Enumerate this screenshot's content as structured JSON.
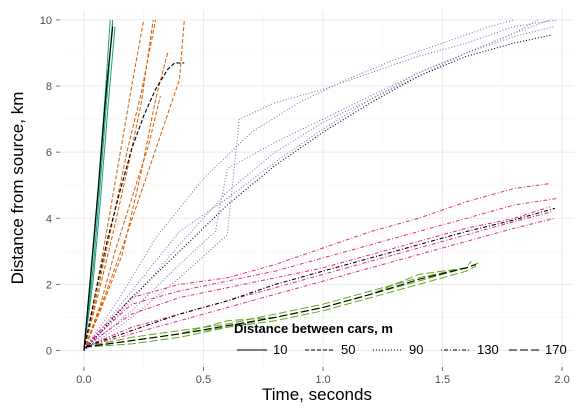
{
  "chart_data": {
    "type": "line",
    "xlabel": "Time, seconds",
    "ylabel": "Distance from source, km",
    "xlim": [
      -0.1,
      2.05
    ],
    "ylim": [
      -0.5,
      10.3
    ],
    "x_ticks": [
      "0.0",
      "0.5",
      "1.0",
      "1.5",
      "2.0"
    ],
    "y_ticks": [
      "0",
      "2",
      "4",
      "6",
      "8",
      "10"
    ],
    "grid": true,
    "background": "#ffffff",
    "grid_major_color": "#ebebeb",
    "grid_minor_color": "#f5f5f5",
    "legend": {
      "title": "Distance between cars, m",
      "position": "bottom-right",
      "entries": [
        {
          "label": "10",
          "dash": "solid"
        },
        {
          "label": "50",
          "dash": "dashed"
        },
        {
          "label": "90",
          "dash": "dotted"
        },
        {
          "label": "130",
          "dash": "dotdash"
        },
        {
          "label": "170",
          "dash": "longdash"
        }
      ]
    },
    "groups": [
      {
        "spacing_m": 10,
        "color": "#1b9e77",
        "runs": [
          {
            "x": [
              0,
              0.03,
              0.06,
              0.09,
              0.11
            ],
            "y": [
              0,
              2.5,
              5.0,
              7.8,
              10.0
            ]
          },
          {
            "x": [
              0,
              0.03,
              0.06,
              0.09,
              0.12
            ],
            "y": [
              0,
              2.3,
              4.8,
              7.5,
              9.9
            ]
          },
          {
            "x": [
              0,
              0.04,
              0.07,
              0.1,
              0.12
            ],
            "y": [
              0,
              2.6,
              5.2,
              8.0,
              10.0
            ]
          },
          {
            "x": [
              0,
              0.03,
              0.06,
              0.09,
              0.12
            ],
            "y": [
              0,
              2.4,
              4.9,
              7.6,
              9.7
            ]
          },
          {
            "x": [
              0,
              0.04,
              0.07,
              0.1,
              0.13
            ],
            "y": [
              0,
              2.2,
              4.6,
              7.3,
              9.8
            ]
          }
        ],
        "mean": {
          "x": [
            0,
            0.03,
            0.06,
            0.09,
            0.12
          ],
          "y": [
            0,
            2.4,
            4.9,
            7.6,
            9.8
          ]
        }
      },
      {
        "spacing_m": 50,
        "color": "#d95f02",
        "runs": [
          {
            "x": [
              0,
              0.05,
              0.1,
              0.15,
              0.2,
              0.25
            ],
            "y": [
              0,
              1.8,
              3.8,
              5.9,
              8.0,
              10.0
            ]
          },
          {
            "x": [
              0,
              0.06,
              0.12,
              0.18,
              0.24,
              0.29
            ],
            "y": [
              0,
              1.7,
              3.5,
              5.4,
              7.5,
              10.0
            ]
          },
          {
            "x": [
              0,
              0.06,
              0.12,
              0.18,
              0.24,
              0.3
            ],
            "y": [
              0,
              1.9,
              3.9,
              6.0,
              7.8,
              10.0
            ]
          },
          {
            "x": [
              0,
              0.07,
              0.13,
              0.2,
              0.27,
              0.32
            ],
            "y": [
              0,
              1.4,
              3.0,
              4.6,
              6.2,
              7.7
            ]
          },
          {
            "x": [
              0,
              0.08,
              0.16,
              0.24,
              0.3,
              0.35
            ],
            "y": [
              0,
              1.4,
              2.9,
              5.4,
              7.6,
              9.0
            ]
          },
          {
            "x": [
              0,
              0.08,
              0.16,
              0.24,
              0.32,
              0.4,
              0.42
            ],
            "y": [
              0,
              1.5,
              3.1,
              4.8,
              6.5,
              8.2,
              10.0
            ]
          }
        ],
        "mean": {
          "x": [
            0,
            0.05,
            0.1,
            0.15,
            0.2,
            0.25,
            0.3,
            0.35,
            0.38,
            0.42
          ],
          "y": [
            0,
            1.8,
            3.4,
            4.8,
            6.1,
            7.1,
            7.9,
            8.5,
            8.7,
            8.7
          ]
        }
      },
      {
        "spacing_m": 90,
        "color": "#7570b3",
        "runs": [
          {
            "x": [
              0,
              0.2,
              0.4,
              0.6,
              0.8,
              1.0,
              1.2,
              1.4,
              1.6,
              1.8,
              1.95
            ],
            "y": [
              0,
              1.5,
              3.2,
              4.8,
              6.0,
              6.9,
              7.6,
              8.3,
              9.0,
              9.6,
              10.0
            ]
          },
          {
            "x": [
              0,
              0.15,
              0.3,
              0.5,
              0.7,
              0.9,
              1.1,
              1.3,
              1.5,
              1.7,
              1.8
            ],
            "y": [
              0,
              1.6,
              3.4,
              5.2,
              6.6,
              7.5,
              8.2,
              8.8,
              9.3,
              9.8,
              10.0
            ]
          },
          {
            "x": [
              0,
              0.2,
              0.4,
              0.55,
              0.6,
              0.8,
              1.0,
              1.2,
              1.4,
              1.6,
              1.8,
              1.97
            ],
            "y": [
              0,
              1.2,
              2.6,
              3.6,
              5.5,
              6.3,
              7.0,
              7.7,
              8.4,
              9.0,
              9.5,
              9.8
            ]
          },
          {
            "x": [
              0,
              0.2,
              0.4,
              0.6,
              0.65,
              0.8,
              1.0,
              1.2,
              1.4,
              1.6,
              1.8,
              1.98
            ],
            "y": [
              0,
              1.0,
              2.2,
              3.5,
              7.0,
              7.5,
              7.9,
              8.4,
              8.9,
              9.3,
              9.8,
              10.0
            ]
          },
          {
            "x": [
              0,
              0.2,
              0.4,
              0.6,
              0.8,
              1.0,
              1.2,
              1.4,
              1.6,
              1.8,
              1.9
            ],
            "y": [
              0,
              1.8,
              3.6,
              4.6,
              5.7,
              6.7,
              7.6,
              8.4,
              9.0,
              9.6,
              10.0
            ]
          }
        ],
        "mean": {
          "x": [
            0,
            0.2,
            0.4,
            0.6,
            0.8,
            1.0,
            1.2,
            1.4,
            1.6,
            1.8,
            1.96
          ],
          "y": [
            0,
            1.6,
            3.0,
            4.4,
            5.6,
            6.6,
            7.5,
            8.3,
            8.9,
            9.3,
            9.55
          ]
        }
      },
      {
        "spacing_m": 130,
        "color": "#e7298a",
        "runs": [
          {
            "x": [
              0,
              0.2,
              0.4,
              0.6,
              0.8,
              1.0,
              1.2,
              1.4,
              1.6,
              1.8,
              1.95
            ],
            "y": [
              0.1,
              1.6,
              2.0,
              2.2,
              2.6,
              3.1,
              3.6,
              4.0,
              4.5,
              4.9,
              5.05
            ]
          },
          {
            "x": [
              0,
              0.2,
              0.4,
              0.6,
              0.8,
              1.0,
              1.2,
              1.4,
              1.6,
              1.8,
              1.98
            ],
            "y": [
              0.1,
              1.4,
              1.8,
              2.1,
              2.4,
              2.8,
              3.2,
              3.6,
              4.0,
              4.4,
              4.6
            ]
          },
          {
            "x": [
              0,
              0.2,
              0.4,
              0.6,
              0.8,
              1.0,
              1.2,
              1.4,
              1.6,
              1.8,
              1.95
            ],
            "y": [
              0.1,
              1.1,
              1.6,
              1.9,
              2.2,
              2.5,
              2.9,
              3.3,
              3.7,
              4.0,
              4.35
            ]
          },
          {
            "x": [
              0,
              0.2,
              0.4,
              0.6,
              0.8,
              1.0,
              1.2,
              1.4,
              1.6,
              1.8,
              1.96
            ],
            "y": [
              0.1,
              0.7,
              1.1,
              1.5,
              1.9,
              2.3,
              2.7,
              3.1,
              3.5,
              3.9,
              4.2
            ]
          },
          {
            "x": [
              0,
              0.2,
              0.4,
              0.6,
              0.8,
              1.0,
              1.2,
              1.4,
              1.6,
              1.8,
              1.97
            ],
            "y": [
              0.1,
              0.5,
              0.9,
              1.3,
              1.7,
              2.1,
              2.5,
              2.9,
              3.3,
              3.7,
              4.0
            ]
          }
        ],
        "mean": {
          "x": [
            0,
            0.2,
            0.4,
            0.6,
            0.8,
            1.0,
            1.2,
            1.4,
            1.6,
            1.8,
            1.97
          ],
          "y": [
            0.1,
            0.6,
            1.1,
            1.5,
            2.0,
            2.4,
            2.8,
            3.2,
            3.6,
            3.95,
            4.3
          ]
        }
      },
      {
        "spacing_m": 170,
        "color": "#66a61e",
        "runs": [
          {
            "x": [
              0,
              0.2,
              0.4,
              0.6,
              0.8,
              1.0,
              1.2,
              1.4,
              1.6,
              1.64
            ],
            "y": [
              0.1,
              0.3,
              0.5,
              0.7,
              1.0,
              1.3,
              1.7,
              2.1,
              2.5,
              2.6
            ]
          },
          {
            "x": [
              0,
              0.2,
              0.4,
              0.6,
              0.8,
              1.0,
              1.2,
              1.4,
              1.6,
              1.65
            ],
            "y": [
              0.1,
              0.4,
              0.6,
              0.8,
              1.1,
              1.4,
              1.8,
              2.2,
              2.5,
              2.65
            ]
          },
          {
            "x": [
              0,
              0.2,
              0.4,
              0.6,
              0.8,
              1.0,
              1.2,
              1.4,
              1.6,
              1.64
            ],
            "y": [
              0.1,
              0.2,
              0.4,
              0.7,
              0.9,
              1.2,
              1.6,
              2.0,
              2.4,
              2.55
            ]
          },
          {
            "x": [
              0,
              0.2,
              0.4,
              0.6,
              0.8,
              1.0,
              1.2,
              1.4,
              1.6,
              1.62
            ],
            "y": [
              0.1,
              0.3,
              0.5,
              0.9,
              1.0,
              1.3,
              1.7,
              2.3,
              2.5,
              2.7
            ]
          }
        ],
        "mean": {
          "x": [
            0,
            0.2,
            0.4,
            0.6,
            0.8,
            1.0,
            1.2,
            1.4,
            1.6,
            1.64
          ],
          "y": [
            0.1,
            0.3,
            0.5,
            0.75,
            1.0,
            1.3,
            1.7,
            2.15,
            2.5,
            2.6
          ]
        }
      }
    ]
  }
}
